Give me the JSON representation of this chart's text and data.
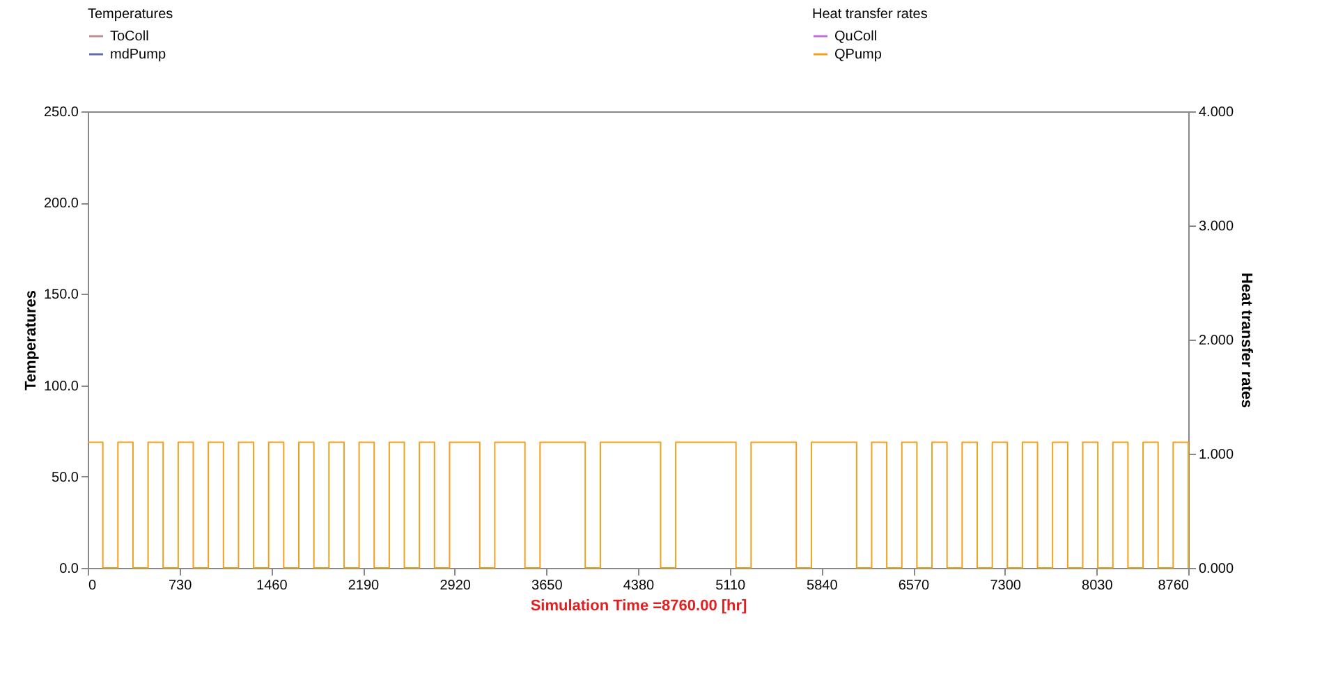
{
  "chart_data": {
    "type": "step",
    "xlabel": "Simulation Time =8760.00 [hr]",
    "ylabel": "Temperatures",
    "y2label": "Heat transfer rates",
    "legend": "top",
    "legend_title": "Temperatures",
    "x": [
      0,
      120,
      240,
      360,
      480,
      600,
      720,
      840,
      960,
      1080,
      1200,
      1320,
      1440,
      1560,
      1680,
      1800,
      1920,
      2040,
      2160,
      2280,
      2400,
      2520,
      2640,
      2760,
      2880,
      3000,
      3120,
      3240,
      3360,
      3480,
      3600,
      3720,
      3840,
      3960,
      4080,
      4200,
      4320,
      4440,
      4560,
      4680,
      4800,
      4920,
      5040,
      5160,
      5280,
      5400,
      5520,
      5640,
      5760,
      5880,
      6000,
      6120,
      6240,
      6360,
      6480,
      6600,
      6720,
      6840,
      6960,
      7080,
      7200,
      7320,
      7440,
      7560,
      7680,
      7800,
      7920,
      8040,
      8160,
      8280,
      8400,
      8520,
      8640,
      8760
    ],
    "series": [
      {
        "name": "ToColl",
        "color": "#c09090",
        "values": [
          null,
          null,
          null,
          null,
          null,
          null,
          null,
          null,
          null,
          null,
          null,
          null,
          null,
          null,
          null,
          null,
          null,
          null,
          null,
          null,
          null,
          null,
          null,
          null,
          null,
          null,
          null,
          null,
          null,
          null,
          null,
          null,
          null,
          null,
          null,
          null,
          null,
          null,
          null,
          null,
          null,
          null,
          null,
          null,
          null,
          null,
          null,
          null,
          null,
          null,
          null,
          null,
          null,
          null,
          null,
          null,
          null,
          null,
          null,
          null,
          null,
          null,
          null,
          null,
          null,
          null,
          null,
          null,
          null,
          null,
          null,
          null,
          null,
          null
        ]
      },
      {
        "name": "mdPump",
        "color": "#6070a8",
        "values": [
          null,
          null,
          null,
          null,
          null,
          null,
          null,
          null,
          null,
          null,
          null,
          null,
          null,
          null,
          null,
          null,
          null,
          null,
          null,
          null,
          null,
          null,
          null,
          null,
          null,
          null,
          null,
          null,
          null,
          null,
          null,
          null,
          null,
          null,
          null,
          null,
          null,
          null,
          null,
          null,
          null,
          null,
          null,
          null,
          null,
          null,
          null,
          null,
          null,
          null,
          null,
          null,
          null,
          null,
          null,
          null,
          null,
          null,
          null,
          null,
          null,
          null,
          null,
          null,
          null,
          null,
          null,
          null,
          null,
          null,
          null,
          null,
          null,
          null
        ]
      },
      {
        "name": "QuColl",
        "color": "#c070e0",
        "axis": "y2",
        "values": [
          null,
          null,
          null,
          null,
          null,
          null,
          null,
          null,
          null,
          null,
          null,
          null,
          null,
          null,
          null,
          null,
          null,
          null,
          null,
          null,
          null,
          null,
          null,
          null,
          null,
          null,
          null,
          null,
          null,
          null,
          null,
          null,
          null,
          null,
          null,
          null,
          null,
          null,
          null,
          null,
          null,
          null,
          null,
          null,
          null,
          null,
          null,
          null,
          null,
          null,
          null,
          null,
          null,
          null,
          null,
          null,
          null,
          null,
          null,
          null,
          null,
          null,
          null,
          null,
          null,
          null,
          null,
          null,
          null,
          null,
          null,
          null,
          null,
          null
        ]
      },
      {
        "name": "QPump",
        "color": "#f0a020",
        "axis": "y2",
        "values": [
          1.1,
          0,
          1.1,
          0,
          1.1,
          0,
          1.1,
          0,
          1.1,
          0,
          1.1,
          0,
          1.1,
          0,
          1.1,
          0,
          1.1,
          0,
          1.1,
          0,
          1.1,
          0,
          1.1,
          0,
          1.1,
          1.1,
          0,
          1.1,
          1.1,
          0,
          1.1,
          1.1,
          1.1,
          0,
          1.1,
          1.1,
          1.1,
          1.1,
          0,
          1.1,
          1.1,
          1.1,
          1.1,
          0,
          1.1,
          1.1,
          1.1,
          0,
          1.1,
          1.1,
          1.1,
          0,
          1.1,
          0,
          1.1,
          0,
          1.1,
          0,
          1.1,
          0,
          1.1,
          0,
          1.1,
          0,
          1.1,
          0,
          1.1,
          0,
          1.1,
          0,
          1.1,
          0,
          1.1,
          0
        ]
      }
    ],
    "xlim": [
      0,
      8760
    ],
    "xticks": [
      0,
      730,
      1460,
      2190,
      2920,
      3650,
      4380,
      5110,
      5840,
      6570,
      7300,
      8030,
      8760
    ],
    "ylim": [
      0,
      250
    ],
    "yticks": [
      {
        "value": 0,
        "label": "0.0"
      },
      {
        "value": 50,
        "label": "50.0"
      },
      {
        "value": 100,
        "label": "100.0"
      },
      {
        "value": 150,
        "label": "150.0"
      },
      {
        "value": 200,
        "label": "200.0"
      },
      {
        "value": 250,
        "label": "250.0"
      }
    ],
    "y2lim": [
      0,
      4
    ],
    "y2ticks": [
      {
        "value": 0,
        "label": "0.000"
      },
      {
        "value": 1,
        "label": "1.000"
      },
      {
        "value": 2,
        "label": "2.000"
      },
      {
        "value": 3,
        "label": "3.000"
      },
      {
        "value": 4,
        "label": "4.000"
      }
    ],
    "grid": false
  }
}
